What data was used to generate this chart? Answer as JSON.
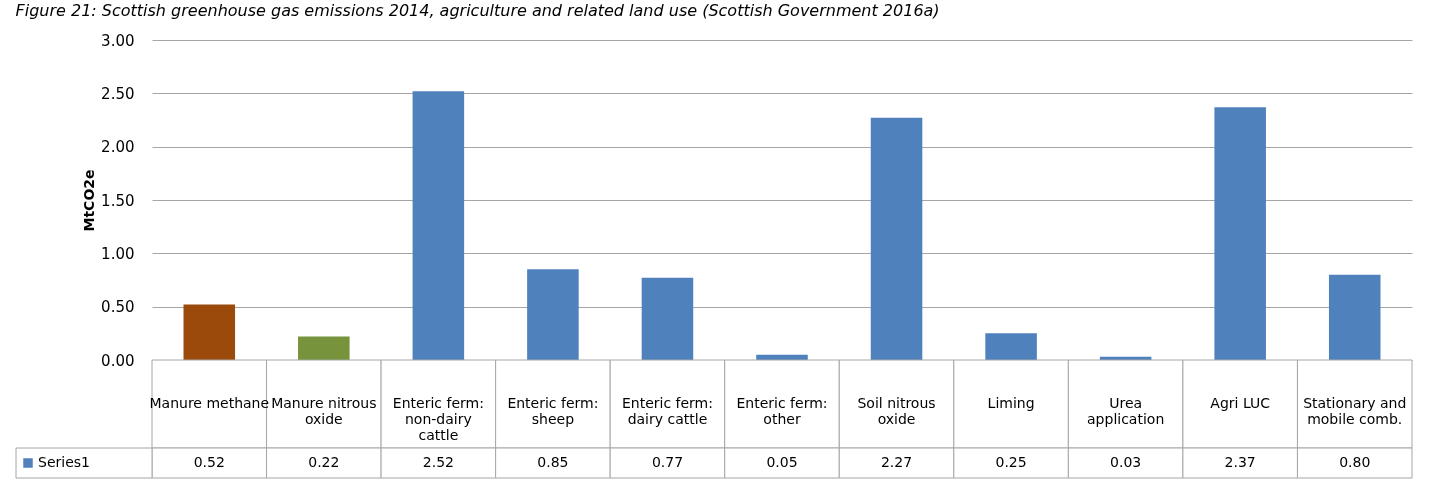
{
  "chart_data": {
    "type": "bar",
    "title": "Figure 21: Scottish greenhouse gas emissions 2014, agriculture and related land use (Scottish Government 2016a)",
    "ylabel": "MtCO2e",
    "categories": [
      "Manure methane",
      "Manure nitrous oxide",
      "Enteric ferm: non-dairy cattle",
      "Enteric ferm: sheep",
      "Enteric ferm: dairy cattle",
      "Enteric ferm: other",
      "Soil nitrous oxide",
      "Liming",
      "Urea application",
      "Agri LUC",
      "Stationary and mobile comb."
    ],
    "series": [
      {
        "name": "Series1",
        "color": "#4f81bd",
        "values": [
          0.52,
          0.22,
          2.52,
          0.85,
          0.77,
          0.05,
          2.27,
          0.25,
          0.03,
          2.37,
          0.8
        ],
        "colors": [
          "#9c4a0c",
          "#77933c",
          "#4f81bd",
          "#4f81bd",
          "#4f81bd",
          "#4f81bd",
          "#4f81bd",
          "#4f81bd",
          "#4f81bd",
          "#4f81bd",
          "#4f81bd"
        ],
        "value_labels": [
          "0.52",
          "0.22",
          "2.52",
          "0.85",
          "0.77",
          "0.05",
          "2.27",
          "0.25",
          "0.03",
          "2.37",
          "0.80"
        ]
      }
    ],
    "ylim": [
      0,
      3
    ],
    "yticks": [
      {
        "value": 0,
        "label": "0.00"
      },
      {
        "value": 0.5,
        "label": "0.50"
      },
      {
        "value": 1,
        "label": "1.00"
      },
      {
        "value": 1.5,
        "label": "1.50"
      },
      {
        "value": 2,
        "label": "2.00"
      },
      {
        "value": 2.5,
        "label": "2.50"
      },
      {
        "value": 3,
        "label": "3.00"
      }
    ],
    "grid": "y",
    "legend": "bottom left"
  }
}
